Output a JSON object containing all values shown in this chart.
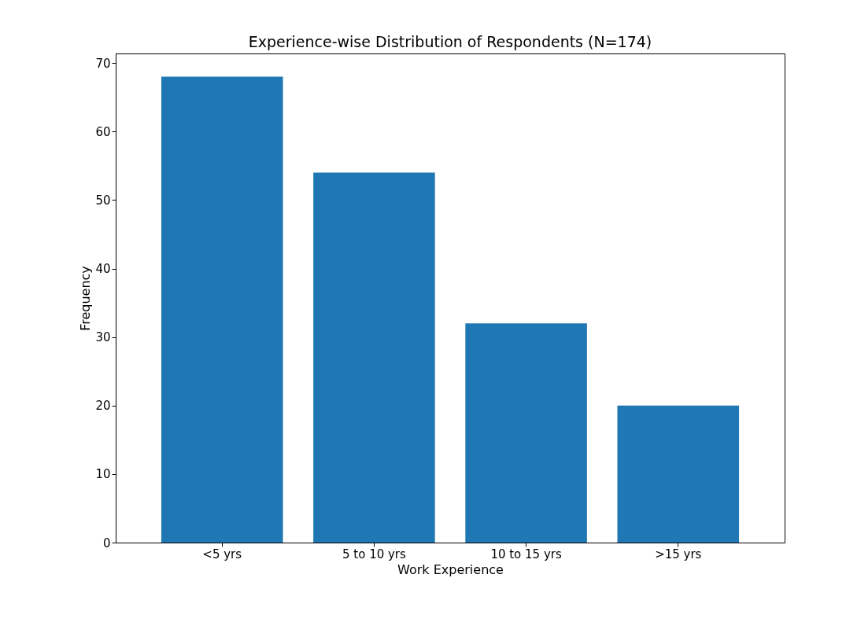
{
  "chart_data": {
    "type": "bar",
    "title": "Experience-wise Distribution of Respondents (N=174)",
    "xlabel": "Work Experience",
    "ylabel": "Frequency",
    "categories": [
      "<5 yrs",
      "5 to 10 yrs",
      "10 to 15 yrs",
      ">15 yrs"
    ],
    "values": [
      68,
      54,
      32,
      20
    ],
    "color": "#1f77b4",
    "ylim": [
      0,
      71.4
    ],
    "yticks": [
      0,
      10,
      20,
      30,
      40,
      50,
      60,
      70
    ],
    "grid": false
  }
}
